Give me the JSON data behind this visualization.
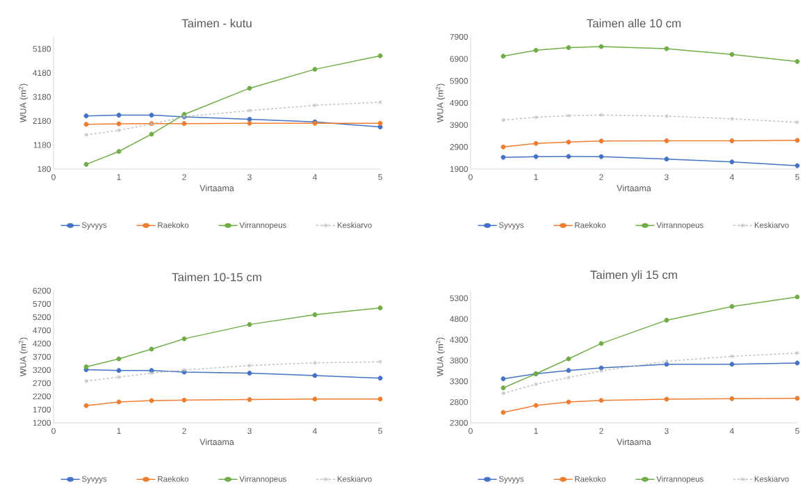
{
  "chart_data": [
    {
      "type": "line",
      "title": "Taimen - kutu",
      "xlabel": "Virtaama",
      "ylabel": "WUA (m$^{2}$)",
      "x": [
        0.5,
        1,
        1.5,
        2,
        3,
        4,
        5
      ],
      "xlim": [
        0,
        5
      ],
      "xticks": [
        0,
        1,
        2,
        3,
        4,
        5
      ],
      "ylim": [
        180,
        5680
      ],
      "yticks": [
        180,
        1180,
        2180,
        3180,
        4180,
        5180
      ],
      "legend": "bottom",
      "series": [
        {
          "name": "Syvyys",
          "color": "#4472c4",
          "marker": "circle",
          "line_style": "solid",
          "values": [
            2390,
            2420,
            2420,
            2350,
            2250,
            2140,
            1930
          ]
        },
        {
          "name": "Raekoko",
          "color": "#ed7d31",
          "marker": "circle",
          "line_style": "solid",
          "values": [
            2040,
            2060,
            2070,
            2070,
            2080,
            2080,
            2080
          ]
        },
        {
          "name": "Virrannopeus",
          "color": "#70ad47",
          "marker": "circle",
          "line_style": "solid",
          "values": [
            370,
            910,
            1630,
            2450,
            3540,
            4330,
            4890
          ]
        },
        {
          "name": "Keskiarvo",
          "color": "#bfbfbf",
          "marker": "cross",
          "line_style": "dashed",
          "values": [
            1600,
            1790,
            2050,
            2360,
            2610,
            2830,
            2960
          ]
        }
      ]
    },
    {
      "type": "line",
      "title": "Taimen alle 10 cm",
      "xlabel": "Virtaama",
      "ylabel": "WUA (m$^{2}$)",
      "x": [
        0.5,
        1,
        1.5,
        2,
        3,
        4,
        5
      ],
      "xlim": [
        0,
        5
      ],
      "xticks": [
        0,
        1,
        2,
        3,
        4,
        5
      ],
      "ylim": [
        1900,
        7900
      ],
      "yticks": [
        1900,
        2900,
        3900,
        4900,
        5900,
        6900,
        7900
      ],
      "legend": "bottom",
      "series": [
        {
          "name": "Syvyys",
          "color": "#4472c4",
          "marker": "circle",
          "line_style": "solid",
          "values": [
            2430,
            2460,
            2470,
            2460,
            2350,
            2220,
            2050
          ]
        },
        {
          "name": "Raekoko",
          "color": "#ed7d31",
          "marker": "circle",
          "line_style": "solid",
          "values": [
            2900,
            3060,
            3120,
            3170,
            3180,
            3180,
            3200
          ]
        },
        {
          "name": "Virrannopeus",
          "color": "#70ad47",
          "marker": "circle",
          "line_style": "solid",
          "values": [
            7020,
            7290,
            7410,
            7460,
            7360,
            7100,
            6780
          ]
        },
        {
          "name": "Keskiarvo",
          "color": "#bfbfbf",
          "marker": "cross",
          "line_style": "dashed",
          "values": [
            4120,
            4250,
            4320,
            4350,
            4300,
            4180,
            4020
          ]
        }
      ]
    },
    {
      "type": "line",
      "title": "Taimen 10-15 cm",
      "xlabel": "Virtaama",
      "ylabel": "WUA (m$^{2}$)",
      "x": [
        0.5,
        1,
        1.5,
        2,
        3,
        4,
        5
      ],
      "xlim": [
        0,
        5
      ],
      "xticks": [
        0,
        1,
        2,
        3,
        4,
        5
      ],
      "ylim": [
        1200,
        6200
      ],
      "yticks": [
        1200,
        1700,
        2200,
        2700,
        3200,
        3700,
        4200,
        4700,
        5200,
        5700,
        6200
      ],
      "legend": "bottom",
      "series": [
        {
          "name": "Syvyys",
          "color": "#4472c4",
          "marker": "circle",
          "line_style": "solid",
          "values": [
            3210,
            3180,
            3180,
            3120,
            3080,
            2990,
            2890
          ]
        },
        {
          "name": "Raekoko",
          "color": "#ed7d31",
          "marker": "circle",
          "line_style": "solid",
          "values": [
            1850,
            1990,
            2040,
            2060,
            2080,
            2100,
            2100
          ]
        },
        {
          "name": "Virrannopeus",
          "color": "#70ad47",
          "marker": "circle",
          "line_style": "solid",
          "values": [
            3320,
            3620,
            3990,
            4380,
            4920,
            5290,
            5550
          ]
        },
        {
          "name": "Keskiarvo",
          "color": "#bfbfbf",
          "marker": "cross",
          "line_style": "dashed",
          "values": [
            2780,
            2930,
            3080,
            3200,
            3370,
            3470,
            3510
          ]
        }
      ]
    },
    {
      "type": "line",
      "title": "Taimen yli 15 cm",
      "xlabel": "Virtaama",
      "ylabel": "WUA (m$^{2}$)",
      "x": [
        0.5,
        1,
        1.5,
        2,
        3,
        4,
        5
      ],
      "xlim": [
        0,
        5
      ],
      "xticks": [
        0,
        1,
        2,
        3,
        4,
        5
      ],
      "ylim": [
        2300,
        5480
      ],
      "yticks": [
        2300,
        2800,
        3300,
        3800,
        4300,
        4800,
        5300
      ],
      "legend": "bottom",
      "series": [
        {
          "name": "Syvyys",
          "color": "#4472c4",
          "marker": "circle",
          "line_style": "solid",
          "values": [
            3360,
            3480,
            3560,
            3620,
            3710,
            3710,
            3740
          ]
        },
        {
          "name": "Raekoko",
          "color": "#ed7d31",
          "marker": "circle",
          "line_style": "solid",
          "values": [
            2550,
            2720,
            2800,
            2840,
            2870,
            2880,
            2890
          ]
        },
        {
          "name": "Virrannopeus",
          "color": "#70ad47",
          "marker": "circle",
          "line_style": "solid",
          "values": [
            3140,
            3480,
            3840,
            4210,
            4770,
            5100,
            5330
          ]
        },
        {
          "name": "Keskiarvo",
          "color": "#bfbfbf",
          "marker": "cross",
          "line_style": "dashed",
          "values": [
            3010,
            3230,
            3390,
            3550,
            3780,
            3900,
            3980
          ]
        }
      ]
    }
  ]
}
